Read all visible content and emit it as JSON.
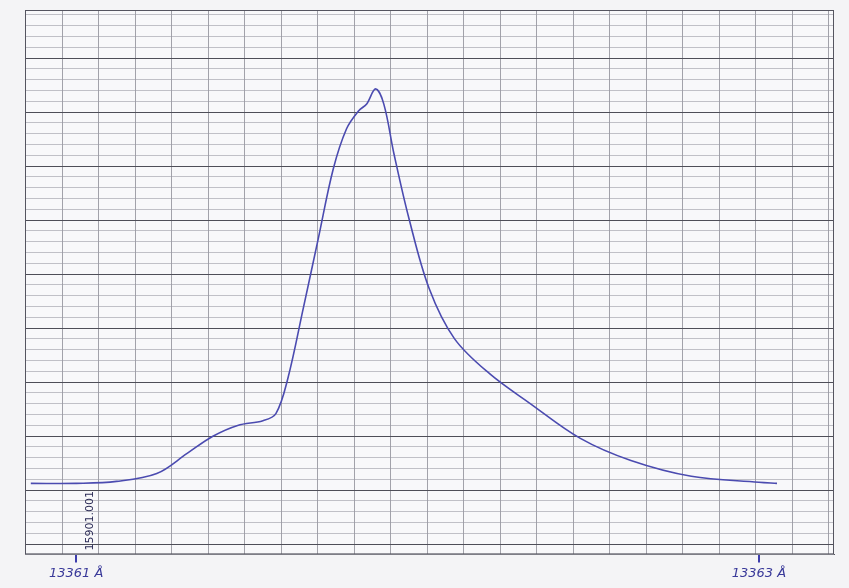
{
  "chart_data": {
    "type": "line",
    "x": [
      13360.867,
      13361.0,
      13361.118,
      13361.236,
      13361.325,
      13361.399,
      13361.473,
      13361.547,
      13361.585,
      13361.62,
      13361.665,
      13361.709,
      13361.753,
      13361.792,
      13361.827,
      13361.851,
      13361.877,
      13361.901,
      13361.931,
      13361.975,
      13362.034,
      13362.108,
      13362.211,
      13362.329,
      13362.477,
      13362.625,
      13362.802,
      13363.0,
      13363.053
    ],
    "values": [
      0,
      0,
      0.5,
      2.5,
      7.6,
      11.9,
      14.7,
      15.9,
      17.7,
      26.6,
      44.3,
      62,
      79.7,
      89.9,
      94.4,
      96.2,
      100,
      96.2,
      83.5,
      67.1,
      49.4,
      36.7,
      27.8,
      20.3,
      11.4,
      5.8,
      1.8,
      0.3,
      0
    ],
    "color": "#4b4bb0",
    "xlim": [
      13360.85,
      13363.22
    ],
    "xticks": [
      {
        "value": 13361,
        "label": "13361 Å"
      },
      {
        "value": 13363,
        "label": "13363 Å"
      }
    ],
    "ylim": [
      -18,
      120
    ],
    "tick_labels": "x",
    "grid": true,
    "annotations": [
      {
        "text": "15901.001"
      }
    ]
  }
}
